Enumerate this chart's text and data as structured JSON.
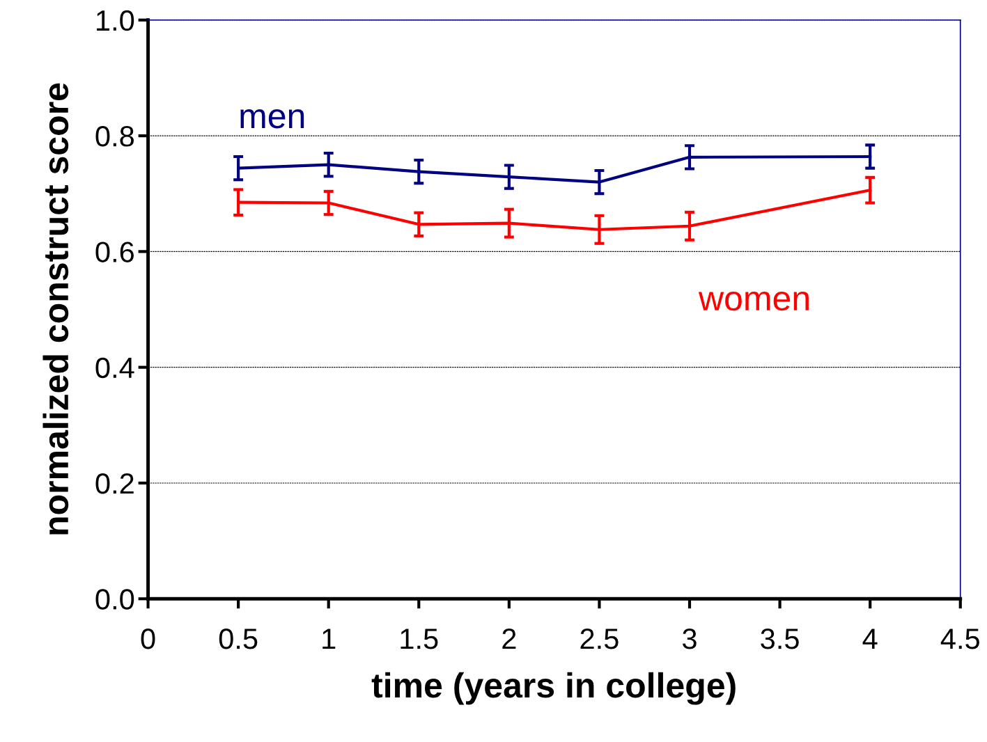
{
  "chart_data": {
    "type": "line",
    "xlabel": "time (years in college)",
    "ylabel": "normalized construct score",
    "x": [
      0.5,
      1,
      1.5,
      2,
      2.5,
      3,
      4
    ],
    "series": [
      {
        "name": "men",
        "color": "#000080",
        "values": [
          0.744,
          0.75,
          0.738,
          0.729,
          0.72,
          0.763,
          0.764
        ],
        "errors": [
          0.02,
          0.02,
          0.02,
          0.02,
          0.02,
          0.02,
          0.02
        ]
      },
      {
        "name": "women",
        "color": "#ff0000",
        "values": [
          0.685,
          0.684,
          0.647,
          0.649,
          0.638,
          0.644,
          0.706
        ],
        "errors": [
          0.022,
          0.02,
          0.02,
          0.024,
          0.024,
          0.024,
          0.022
        ]
      }
    ],
    "xlim": [
      0,
      4.5
    ],
    "xticks": [
      0,
      0.5,
      1,
      1.5,
      2,
      2.5,
      3,
      3.5,
      4,
      4.5
    ],
    "ylim": [
      0,
      1
    ],
    "yticks": [
      {
        "value": 0,
        "label": "0.0"
      },
      0.2,
      0.4,
      0.6,
      0.8,
      {
        "value": 1,
        "label": "1.0"
      }
    ],
    "grid": "y",
    "marker": "none",
    "line_style": "solid",
    "legend": false
  }
}
